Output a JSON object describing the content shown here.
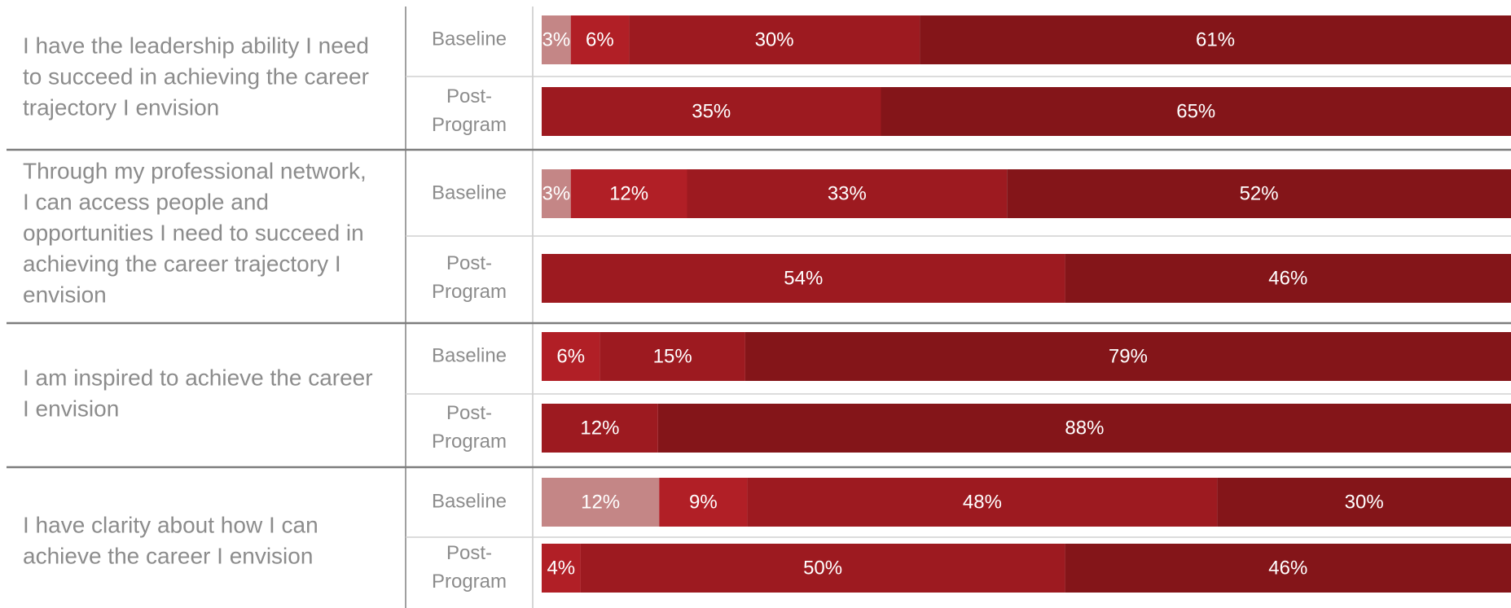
{
  "chart_data": {
    "type": "bar",
    "orientation": "horizontal",
    "stacked": true,
    "percent_stacked": true,
    "grid": false,
    "legend": "none",
    "colors": [
      "#c48686",
      "#b11f26",
      "#9d1a20",
      "#841519"
    ],
    "questions": [
      {
        "text": [
          "I have the leadership ability I need",
          "to succeed in achieving the career",
          "trajectory I envision"
        ],
        "rows": [
          {
            "label": [
              "Baseline"
            ],
            "segments": [
              {
                "value": 3,
                "label": "3%",
                "color": "#c48686"
              },
              {
                "value": 6,
                "label": "6%",
                "color": "#b11f26"
              },
              {
                "value": 30,
                "label": "30%",
                "color": "#9d1a20"
              },
              {
                "value": 61,
                "label": "61%",
                "color": "#841519"
              }
            ]
          },
          {
            "label": [
              "Post-",
              "Program"
            ],
            "segments": [
              {
                "value": 35,
                "label": "35%",
                "color": "#9d1a20"
              },
              {
                "value": 65,
                "label": "65%",
                "color": "#841519"
              }
            ]
          }
        ]
      },
      {
        "text": [
          "Through my professional network,",
          "I can access people and",
          "opportunities I need to succeed in",
          "achieving the career trajectory I",
          "envision"
        ],
        "rows": [
          {
            "label": [
              "Baseline"
            ],
            "segments": [
              {
                "value": 3,
                "label": "3%",
                "color": "#c48686"
              },
              {
                "value": 12,
                "label": "12%",
                "color": "#b11f26"
              },
              {
                "value": 33,
                "label": "33%",
                "color": "#9d1a20"
              },
              {
                "value": 52,
                "label": "52%",
                "color": "#841519"
              }
            ]
          },
          {
            "label": [
              "Post-",
              "Program"
            ],
            "segments": [
              {
                "value": 54,
                "label": "54%",
                "color": "#9d1a20"
              },
              {
                "value": 46,
                "label": "46%",
                "color": "#841519"
              }
            ]
          }
        ]
      },
      {
        "text": [
          "I am inspired to achieve the career",
          "I envision"
        ],
        "rows": [
          {
            "label": [
              "Baseline"
            ],
            "segments": [
              {
                "value": 6,
                "label": "6%",
                "color": "#b11f26"
              },
              {
                "value": 15,
                "label": "15%",
                "color": "#9d1a20"
              },
              {
                "value": 79,
                "label": "79%",
                "color": "#841519"
              }
            ]
          },
          {
            "label": [
              "Post-",
              "Program"
            ],
            "segments": [
              {
                "value": 12,
                "label": "12%",
                "color": "#9d1a20"
              },
              {
                "value": 88,
                "label": "88%",
                "color": "#841519"
              }
            ]
          }
        ]
      },
      {
        "text": [
          "I have clarity about how I can",
          "achieve the career I envision"
        ],
        "rows": [
          {
            "label": [
              "Baseline"
            ],
            "segments": [
              {
                "value": 12,
                "label": "12%",
                "color": "#c48686"
              },
              {
                "value": 9,
                "label": "9%",
                "color": "#b11f26"
              },
              {
                "value": 48,
                "label": "48%",
                "color": "#9d1a20"
              },
              {
                "value": 30,
                "label": "30%",
                "color": "#841519"
              }
            ]
          },
          {
            "label": [
              "Post-",
              "Program"
            ],
            "segments": [
              {
                "value": 4,
                "label": "4%",
                "color": "#b11f26"
              },
              {
                "value": 50,
                "label": "50%",
                "color": "#9d1a20"
              },
              {
                "value": 46,
                "label": "46%",
                "color": "#841519"
              }
            ]
          }
        ]
      }
    ]
  }
}
